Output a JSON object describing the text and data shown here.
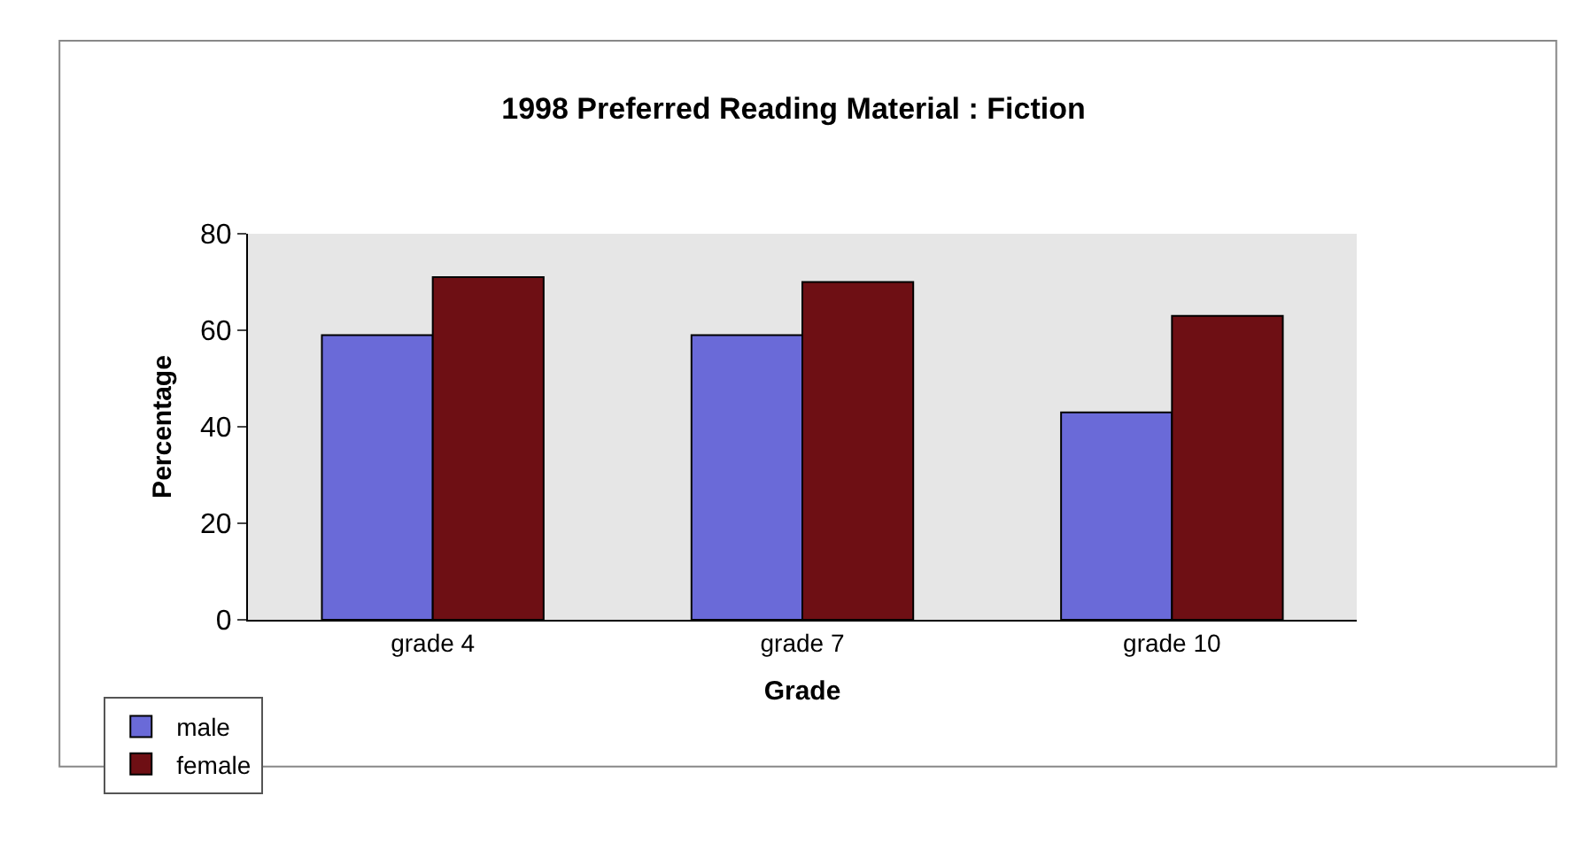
{
  "chart_data": {
    "type": "bar",
    "title": "1998 Preferred Reading Material : Fiction",
    "xlabel": "Grade",
    "ylabel": "Percentage",
    "categories": [
      "grade 4",
      "grade 7",
      "grade 10"
    ],
    "series": [
      {
        "name": "male",
        "color": "#6a6ad8",
        "values": [
          59,
          59,
          43
        ]
      },
      {
        "name": "female",
        "color": "#6e0f14",
        "values": [
          71,
          70,
          63
        ]
      }
    ],
    "ylim": [
      0,
      80
    ],
    "yticks": [
      0,
      20,
      40,
      60,
      80
    ],
    "grid": false,
    "legend": "bottom left"
  }
}
